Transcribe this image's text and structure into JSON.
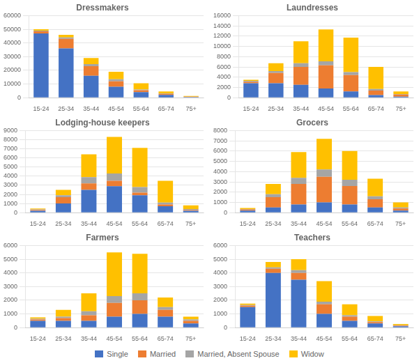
{
  "chart_data": [
    {
      "type": "bar",
      "title": "Dressmakers",
      "stacked": true,
      "grid": true,
      "legend": "bottom",
      "categories": [
        "15-24",
        "25-34",
        "35-44",
        "45-54",
        "55-64",
        "65-74",
        "75+"
      ],
      "series": [
        {
          "name": "Single",
          "color": "#4472C4",
          "values": [
            47000,
            36000,
            16000,
            8000,
            4000,
            2000,
            500
          ]
        },
        {
          "name": "Married",
          "color": "#ED7D31",
          "values": [
            1500,
            7000,
            7000,
            4000,
            1500,
            800,
            200
          ]
        },
        {
          "name": "Married, Absent Spouse",
          "color": "#A5A5A5",
          "values": [
            500,
            1000,
            1500,
            1500,
            500,
            300,
            100
          ]
        },
        {
          "name": "Widow",
          "color": "#FFC000",
          "values": [
            1000,
            2000,
            4500,
            5500,
            4500,
            1500,
            500
          ]
        }
      ],
      "ylim": [
        0,
        60000
      ],
      "yticks": [
        0,
        10000,
        20000,
        30000,
        40000,
        50000,
        60000
      ]
    },
    {
      "type": "bar",
      "title": "Laundresses",
      "stacked": true,
      "grid": true,
      "legend": "bottom",
      "categories": [
        "15-24",
        "25-34",
        "35-44",
        "45-54",
        "55-64",
        "65-74",
        "75+"
      ],
      "series": [
        {
          "name": "Single",
          "color": "#4472C4",
          "values": [
            2800,
            2800,
            2500,
            1800,
            1200,
            500,
            200
          ]
        },
        {
          "name": "Married",
          "color": "#ED7D31",
          "values": [
            300,
            2000,
            3500,
            4500,
            3200,
            900,
            400
          ]
        },
        {
          "name": "Married, Absent Spouse",
          "color": "#A5A5A5",
          "values": [
            200,
            400,
            700,
            800,
            600,
            300,
            100
          ]
        },
        {
          "name": "Widow",
          "color": "#FFC000",
          "values": [
            200,
            1500,
            4300,
            6200,
            6700,
            4300,
            500
          ]
        }
      ],
      "ylim": [
        0,
        16000
      ],
      "yticks": [
        0,
        2000,
        4000,
        6000,
        8000,
        10000,
        12000,
        14000,
        16000
      ]
    },
    {
      "type": "bar",
      "title": "Lodging-house keepers",
      "stacked": true,
      "grid": true,
      "legend": "bottom",
      "categories": [
        "15-24",
        "25-34",
        "35-44",
        "45-54",
        "55-64",
        "65-74",
        "75+"
      ],
      "series": [
        {
          "name": "Single",
          "color": "#4472C4",
          "values": [
            200,
            1000,
            2500,
            2900,
            1900,
            700,
            200
          ]
        },
        {
          "name": "Married",
          "color": "#ED7D31",
          "values": [
            100,
            700,
            700,
            600,
            300,
            200,
            100
          ]
        },
        {
          "name": "Married, Absent Spouse",
          "color": "#A5A5A5",
          "values": [
            50,
            200,
            700,
            800,
            600,
            200,
            100
          ]
        },
        {
          "name": "Widow",
          "color": "#FFC000",
          "values": [
            100,
            600,
            2500,
            4000,
            4300,
            2400,
            400
          ]
        }
      ],
      "ylim": [
        0,
        9000
      ],
      "yticks": [
        0,
        1000,
        2000,
        3000,
        4000,
        5000,
        6000,
        7000,
        8000,
        9000
      ]
    },
    {
      "type": "bar",
      "title": "Grocers",
      "stacked": true,
      "grid": true,
      "legend": "bottom",
      "categories": [
        "15-24",
        "25-34",
        "35-44",
        "45-54",
        "55-64",
        "65-74",
        "75+"
      ],
      "series": [
        {
          "name": "Single",
          "color": "#4472C4",
          "values": [
            200,
            500,
            800,
            1000,
            800,
            500,
            200
          ]
        },
        {
          "name": "Married",
          "color": "#ED7D31",
          "values": [
            100,
            1000,
            2000,
            2500,
            1800,
            800,
            200
          ]
        },
        {
          "name": "Married, Absent Spouse",
          "color": "#A5A5A5",
          "values": [
            50,
            300,
            600,
            700,
            600,
            300,
            100
          ]
        },
        {
          "name": "Widow",
          "color": "#FFC000",
          "values": [
            100,
            1000,
            2500,
            3000,
            2800,
            1700,
            500
          ]
        }
      ],
      "ylim": [
        0,
        8000
      ],
      "yticks": [
        0,
        1000,
        2000,
        3000,
        4000,
        5000,
        6000,
        7000,
        8000
      ]
    },
    {
      "type": "bar",
      "title": "Farmers",
      "stacked": true,
      "grid": true,
      "legend": "bottom",
      "categories": [
        "15-24",
        "25-34",
        "35-44",
        "45-54",
        "55-64",
        "65-74",
        "75+"
      ],
      "series": [
        {
          "name": "Single",
          "color": "#4472C4",
          "values": [
            500,
            500,
            500,
            800,
            1000,
            800,
            300
          ]
        },
        {
          "name": "Married",
          "color": "#ED7D31",
          "values": [
            100,
            200,
            400,
            1000,
            1000,
            500,
            200
          ]
        },
        {
          "name": "Married, Absent Spouse",
          "color": "#A5A5A5",
          "values": [
            50,
            100,
            300,
            500,
            500,
            200,
            100
          ]
        },
        {
          "name": "Widow",
          "color": "#FFC000",
          "values": [
            100,
            500,
            1300,
            3200,
            2900,
            700,
            200
          ]
        }
      ],
      "ylim": [
        0,
        6000
      ],
      "yticks": [
        0,
        1000,
        2000,
        3000,
        4000,
        5000,
        6000
      ]
    },
    {
      "type": "bar",
      "title": "Teachers",
      "stacked": true,
      "grid": true,
      "legend": "bottom",
      "categories": [
        "15-24",
        "25-34",
        "35-44",
        "45-54",
        "55-64",
        "65-74",
        "75+"
      ],
      "series": [
        {
          "name": "Single",
          "color": "#4472C4",
          "values": [
            1500,
            4000,
            3500,
            1000,
            500,
            300,
            100
          ]
        },
        {
          "name": "Married",
          "color": "#ED7D31",
          "values": [
            100,
            300,
            500,
            700,
            300,
            100,
            50
          ]
        },
        {
          "name": "Married, Absent Spouse",
          "color": "#A5A5A5",
          "values": [
            50,
            100,
            200,
            200,
            100,
            50,
            20
          ]
        },
        {
          "name": "Widow",
          "color": "#FFC000",
          "values": [
            100,
            400,
            800,
            1500,
            800,
            400,
            100
          ]
        }
      ],
      "ylim": [
        0,
        6000
      ],
      "yticks": [
        0,
        1000,
        2000,
        3000,
        4000,
        5000,
        6000
      ]
    }
  ]
}
